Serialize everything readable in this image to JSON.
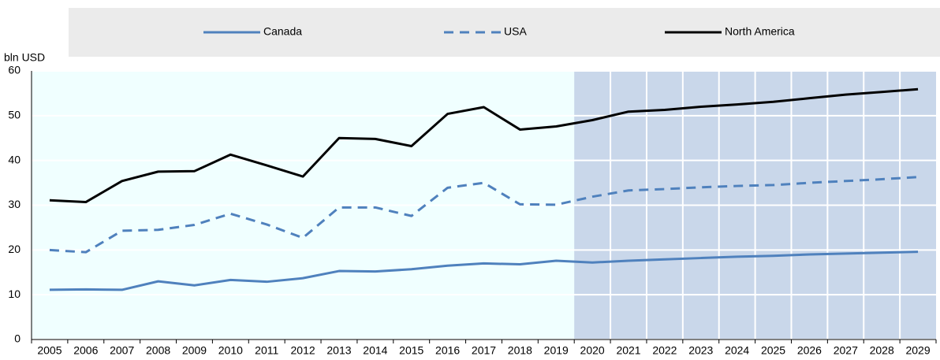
{
  "chart_data": {
    "type": "line",
    "y_label": "bln USD",
    "categories": [
      "2005",
      "2006",
      "2007",
      "2008",
      "2009",
      "2010",
      "2011",
      "2012",
      "2013",
      "2014",
      "2015",
      "2016",
      "2017",
      "2018",
      "2019",
      "2020",
      "2021",
      "2022",
      "2023",
      "2024",
      "2025",
      "2026",
      "2027",
      "2028",
      "2029"
    ],
    "series": [
      {
        "name": "Canada",
        "color": "#4f81bd",
        "style": "solid",
        "values": [
          11.1,
          11.2,
          11.1,
          13.0,
          12.1,
          13.3,
          12.9,
          13.7,
          15.3,
          15.2,
          15.7,
          16.5,
          17.0,
          16.8,
          17.6,
          17.2,
          17.6,
          17.9,
          18.2,
          18.5,
          18.7,
          19.0,
          19.2,
          19.4,
          19.6
        ]
      },
      {
        "name": "USA",
        "color": "#4f81bd",
        "style": "dashed",
        "values": [
          20.0,
          19.5,
          24.3,
          24.5,
          25.6,
          28.1,
          25.7,
          22.7,
          29.5,
          29.5,
          27.6,
          33.9,
          35.0,
          30.2,
          30.1,
          31.9,
          33.3,
          33.6,
          34.0,
          34.3,
          34.5,
          35.0,
          35.4,
          35.8,
          36.3
        ]
      },
      {
        "name": "North America",
        "color": "#000000",
        "style": "solid",
        "values": [
          31.1,
          30.7,
          35.4,
          37.5,
          37.6,
          41.3,
          38.9,
          36.4,
          45.0,
          44.8,
          43.2,
          50.4,
          51.9,
          46.9,
          47.6,
          49.0,
          50.9,
          51.3,
          52.0,
          52.5,
          53.1,
          53.9,
          54.7,
          55.3,
          55.9
        ]
      }
    ],
    "ylim": [
      0,
      60
    ],
    "yticks": [
      0,
      10,
      20,
      30,
      40,
      50,
      60
    ],
    "grid": true,
    "legend": "top",
    "shaded_from": "2020"
  }
}
